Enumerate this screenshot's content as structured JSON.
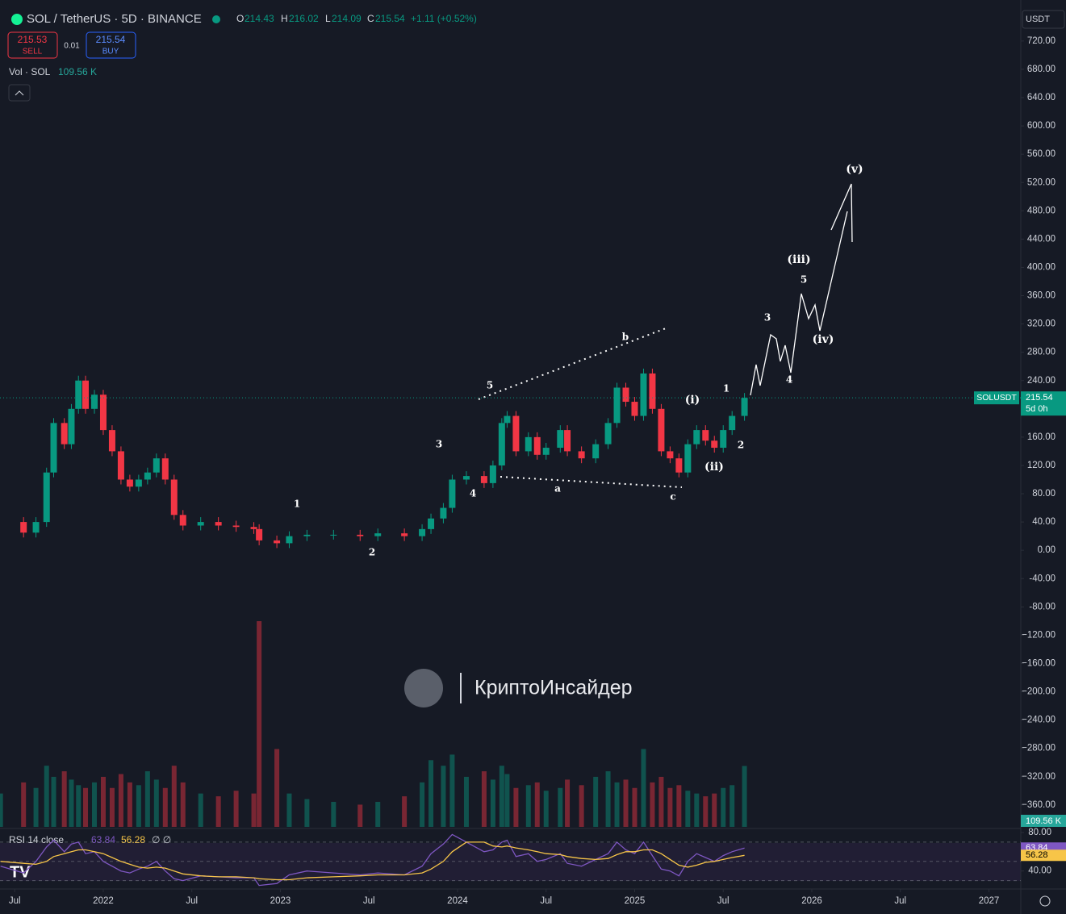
{
  "header": {
    "symbol": "SOL / TetherUS · 5D · BINANCE",
    "o_label": "O",
    "o": 214.43,
    "h_label": "H",
    "h": 216.02,
    "l_label": "L",
    "l": 214.09,
    "c_label": "C",
    "c": 215.54,
    "change": "+1.11 (+0.52%)",
    "sell_price": 215.53,
    "sell": "SELL",
    "spread": 0.01,
    "buy_price": 215.54,
    "buy": "BUY",
    "currency": "USDT",
    "watermark": "КриптоИнсайдер"
  },
  "chart_data": {
    "type": "candlestick",
    "x": [
      2021.42,
      2021.55,
      2021.62,
      2021.68,
      2021.72,
      2021.78,
      2021.82,
      2021.86,
      2021.9,
      2021.95,
      2022.0,
      2022.05,
      2022.1,
      2022.15,
      2022.2,
      2022.25,
      2022.3,
      2022.35,
      2022.4,
      2022.45,
      2022.55,
      2022.65,
      2022.75,
      2022.85,
      2022.88,
      2022.98,
      2023.05,
      2023.15,
      2023.3,
      2023.45,
      2023.55,
      2023.7,
      2023.8,
      2023.85,
      2023.92,
      2023.97,
      2024.05,
      2024.15,
      2024.2,
      2024.25,
      2024.28,
      2024.33,
      2024.4,
      2024.45,
      2024.5,
      2024.58,
      2024.62,
      2024.7,
      2024.78,
      2024.85,
      2024.9,
      2024.95,
      2025.0,
      2025.05,
      2025.1,
      2025.15,
      2025.2,
      2025.25,
      2025.3,
      2025.35,
      2025.4,
      2025.45,
      2025.5,
      2025.55,
      2025.62
    ],
    "xlim": [
      2021.417,
      2027.18
    ],
    "xticks": [
      {
        "value": 2021.5,
        "label": "Jul"
      },
      2022,
      {
        "value": 2022.5,
        "label": "Jul"
      },
      2023,
      {
        "value": 2023.5,
        "label": "Jul"
      },
      2024,
      {
        "value": 2024.5,
        "label": "Jul"
      },
      2025,
      {
        "value": 2025.5,
        "label": "Jul"
      },
      2026,
      {
        "value": 2026.5,
        "label": "Jul"
      },
      2027
    ],
    "ylim": [
      -391,
      778
    ],
    "yticks": [
      {
        "value": 720,
        "label": "720.00"
      },
      {
        "value": 680,
        "label": "680.00"
      },
      {
        "value": 640,
        "label": "640.00"
      },
      {
        "value": 600,
        "label": "600.00"
      },
      {
        "value": 560,
        "label": "560.00"
      },
      {
        "value": 520,
        "label": "520.00"
      },
      {
        "value": 480,
        "label": "480.00"
      },
      {
        "value": 440,
        "label": "440.00"
      },
      {
        "value": 400,
        "label": "400.00"
      },
      {
        "value": 360,
        "label": "360.00"
      },
      {
        "value": 320,
        "label": "320.00"
      },
      {
        "value": 280,
        "label": "280.00"
      },
      {
        "value": 240,
        "label": "240.00"
      },
      {
        "value": 200,
        "label": "200.00"
      },
      {
        "value": 160,
        "label": "160.00"
      },
      {
        "value": 120,
        "label": "120.00"
      },
      {
        "value": 80,
        "label": "80.00"
      },
      {
        "value": 40,
        "label": "40.00"
      },
      {
        "value": 0,
        "label": "0.00"
      },
      {
        "value": -40,
        "label": "-40.00"
      },
      {
        "value": -80,
        "label": "-80.00"
      },
      {
        "value": -120,
        "label": "−120.00"
      },
      {
        "value": -160,
        "label": "−160.00"
      },
      {
        "value": -200,
        "label": "−200.00"
      },
      {
        "value": -240,
        "label": "−240.00"
      },
      {
        "value": -280,
        "label": "−280.00"
      },
      {
        "value": -320,
        "label": "−320.00"
      },
      {
        "value": -360,
        "label": "−360.00"
      }
    ],
    "price": {
      "name": "SOLUSDT",
      "last": 215.54,
      "countdown": "5d 0h",
      "up_color": "#089981",
      "down_color": "#f23645",
      "values": [
        40,
        25,
        40,
        110,
        180,
        150,
        200,
        240,
        200,
        220,
        170,
        140,
        100,
        90,
        100,
        110,
        130,
        100,
        50,
        35,
        40,
        35,
        33,
        30,
        14,
        10,
        20,
        22,
        22,
        20,
        24,
        20,
        30,
        45,
        60,
        100,
        105,
        95,
        120,
        180,
        190,
        140,
        160,
        135,
        145,
        170,
        140,
        130,
        150,
        180,
        230,
        210,
        190,
        250,
        200,
        140,
        130,
        110,
        150,
        170,
        155,
        145,
        170,
        190,
        215.54
      ]
    },
    "volume": {
      "name": "Vol · SOL",
      "last_label": "109.56 K",
      "ylim": [
        0,
        370
      ],
      "values": [
        60,
        80,
        70,
        110,
        90,
        100,
        85,
        75,
        70,
        80,
        90,
        70,
        95,
        80,
        75,
        100,
        85,
        70,
        110,
        80,
        60,
        55,
        65,
        60,
        370,
        140,
        60,
        50,
        45,
        40,
        45,
        55,
        80,
        120,
        110,
        130,
        90,
        100,
        85,
        110,
        95,
        70,
        75,
        80,
        65,
        70,
        85,
        75,
        90,
        100,
        80,
        85,
        70,
        140,
        80,
        90,
        70,
        75,
        65,
        60,
        55,
        60,
        70,
        75,
        109.56
      ]
    },
    "rsi": {
      "name": "RSI 14 close",
      "last": 63.84,
      "ma_last": 56.28,
      "extra": "∅ ∅",
      "color": "#7e57c2",
      "ma_color": "#f7c548",
      "ylim": [
        23,
        85
      ],
      "yticks": [
        {
          "value": 80,
          "label": "80.00"
        },
        {
          "value": 40,
          "label": "40.00"
        }
      ],
      "bands": [
        70,
        50,
        30
      ],
      "values": [
        45,
        38,
        50,
        65,
        72,
        60,
        68,
        70,
        58,
        60,
        50,
        45,
        40,
        38,
        42,
        45,
        50,
        40,
        32,
        30,
        35,
        34,
        33,
        33,
        25,
        27,
        36,
        40,
        38,
        36,
        38,
        36,
        45,
        58,
        68,
        78,
        70,
        60,
        62,
        70,
        72,
        55,
        58,
        50,
        52,
        58,
        48,
        45,
        52,
        58,
        70,
        62,
        58,
        70,
        56,
        42,
        40,
        35,
        50,
        58,
        54,
        50,
        56,
        60,
        63.84
      ],
      "ma_values": [
        50,
        48,
        47,
        50,
        55,
        58,
        60,
        62,
        62,
        60,
        58,
        54,
        50,
        47,
        44,
        43,
        44,
        43,
        40,
        37,
        35,
        34,
        34,
        33,
        32,
        31,
        31,
        33,
        34,
        35,
        36,
        36,
        38,
        42,
        50,
        60,
        70,
        70,
        66,
        65,
        66,
        64,
        62,
        60,
        58,
        57,
        55,
        53,
        52,
        53,
        57,
        60,
        60,
        62,
        62,
        58,
        52,
        46,
        44,
        46,
        49,
        50,
        52,
        54,
        56.28
      ]
    },
    "annotations": [
      "5",
      "b",
      "3",
      "4",
      "1",
      "2",
      "a",
      "c",
      "(i)",
      "1",
      "(ii)",
      "2",
      "3",
      "4",
      "5",
      "(iii)",
      "(iv)",
      "(v)"
    ]
  }
}
